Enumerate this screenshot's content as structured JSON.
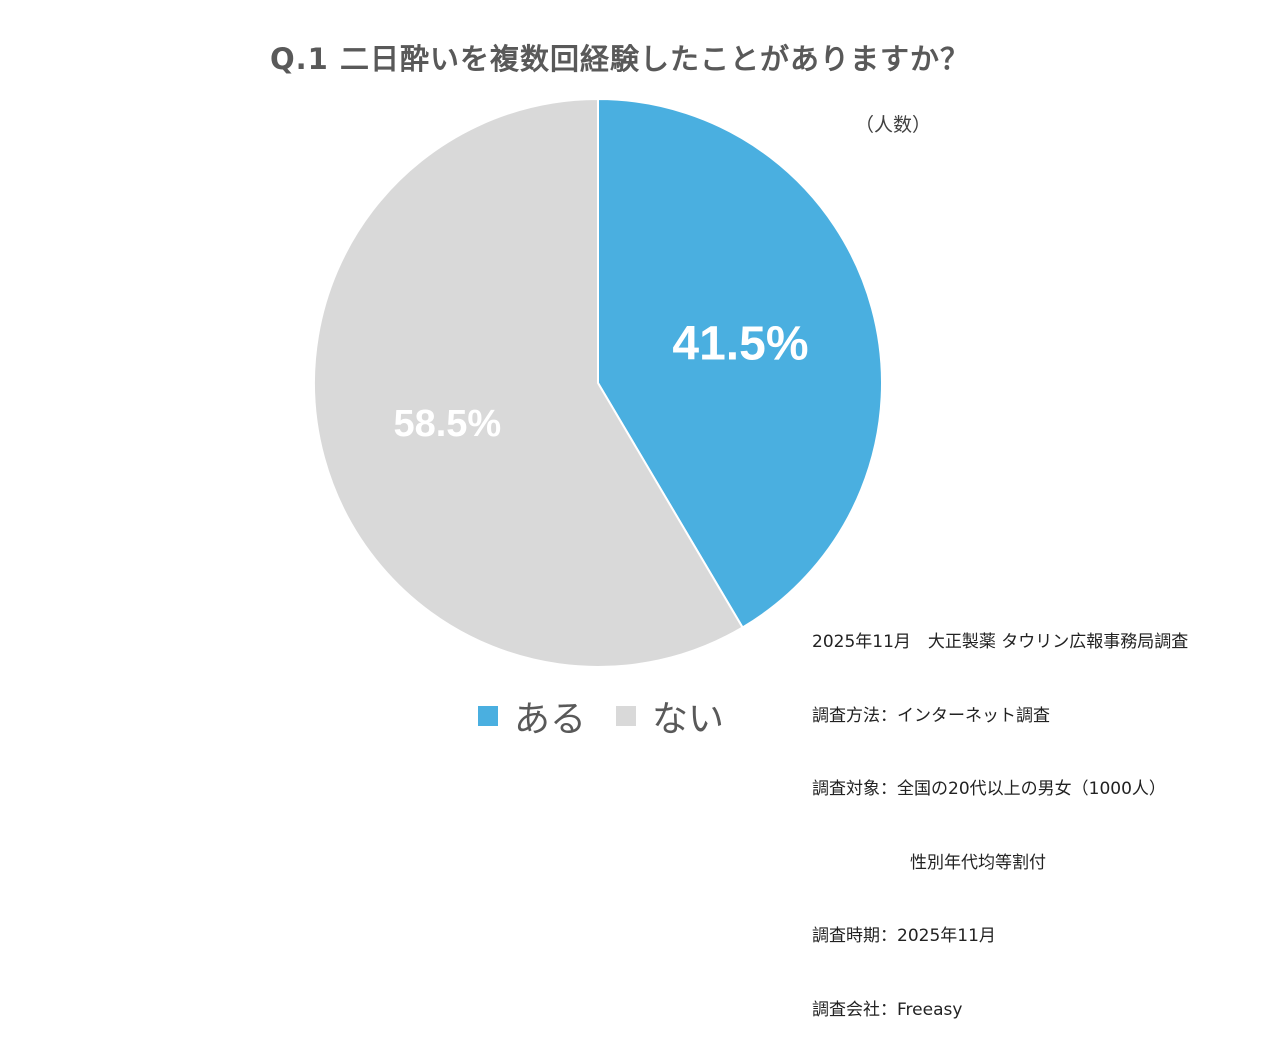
{
  "chart_data": {
    "type": "pie",
    "title": "Q.1 二日酔いを複数回経験したことがありますか？",
    "unit_note": "（人数）",
    "slices": [
      {
        "label": "ある",
        "value": 41.5,
        "display": "41.5%",
        "color": "#4AAFE0"
      },
      {
        "label": "ない",
        "value": 58.5,
        "display": "58.5%",
        "color": "#D9D9D9"
      }
    ],
    "start_angle_deg": 0,
    "direction": "clockwise",
    "legend_position": "bottom"
  },
  "footnote": {
    "lines": [
      {
        "key": "",
        "text": "2025年11月　大正製薬 タウリン広報事務局調査"
      },
      {
        "key": "調査方法：",
        "text": "インターネット調査"
      },
      {
        "key": "調査対象：",
        "text": "全国の20代以上の男女（1000人）"
      },
      {
        "key": "",
        "text": "性別年代均等割付",
        "indent": true
      },
      {
        "key": "調査時期：",
        "text": "2025年11月"
      },
      {
        "key": "調査会社：",
        "text": "Freeasy"
      }
    ]
  }
}
